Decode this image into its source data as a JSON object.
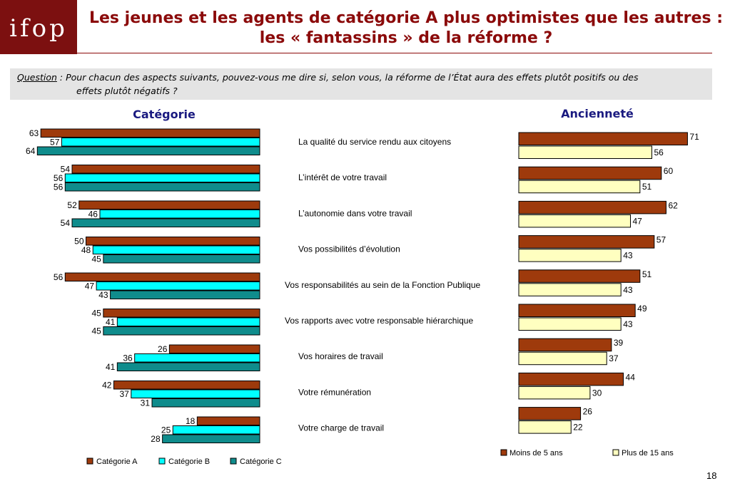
{
  "logo": "ifop",
  "title_line1": "Les jeunes et les agents de catégorie A plus optimistes que les autres :",
  "title_line2": "les « fantassins » de la réforme ?",
  "question": {
    "label": "Question",
    "line1": " : Pour chacun des aspects suivants, pouvez-vous me dire si, selon vous, la réforme de l’État aura des effets plutôt positifs ou des",
    "line2": "effets plutôt négatifs ?"
  },
  "page_number": "18",
  "colors": {
    "dark_red": "#9e3a0c",
    "cyan": "#00ffff",
    "teal": "#0f8c8c",
    "light_yellow": "#ffffc0"
  },
  "chart_data": [
    {
      "type": "bar",
      "orientation": "horizontal",
      "title": "Catégorie",
      "categories": [
        "La qualité du service rendu aux citoyens",
        "L’intérêt de votre travail",
        "L’autonomie dans votre travail",
        "Vos possibilités d’évolution",
        "Vos responsabilités au sein de la Fonction Publique",
        "Vos rapports avec votre responsable hiérarchique",
        "Vos horaires de travail",
        "Votre rémunération",
        "Votre charge de travail"
      ],
      "series": [
        {
          "name": "Catégorie A",
          "values": [
            63,
            54,
            52,
            50,
            56,
            45,
            26,
            42,
            18
          ]
        },
        {
          "name": "Catégorie B",
          "values": [
            57,
            56,
            46,
            48,
            47,
            41,
            36,
            37,
            25
          ]
        },
        {
          "name": "Catégorie C",
          "values": [
            64,
            56,
            54,
            45,
            43,
            45,
            41,
            31,
            28
          ]
        }
      ],
      "legend": "bottom"
    },
    {
      "type": "bar",
      "orientation": "horizontal",
      "title": "Ancienneté",
      "categories": [
        "La qualité du service rendu aux citoyens",
        "L’intérêt de votre travail",
        "L’autonomie dans votre travail",
        "Vos possibilités d’évolution",
        "Vos responsabilités au sein de la Fonction Publique",
        "Vos rapports avec votre responsable hiérarchique",
        "Vos horaires de travail",
        "Votre rémunération",
        "Votre charge de travail"
      ],
      "series": [
        {
          "name": "Moins de 5 ans",
          "values": [
            71,
            60,
            62,
            57,
            51,
            49,
            39,
            44,
            26
          ]
        },
        {
          "name": "Plus de 15 ans",
          "values": [
            56,
            51,
            47,
            43,
            43,
            43,
            37,
            30,
            22
          ]
        }
      ],
      "legend": "bottom"
    }
  ]
}
